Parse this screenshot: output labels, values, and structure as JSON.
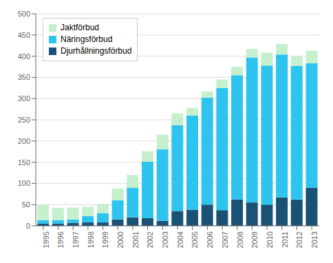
{
  "chart_data": {
    "type": "bar",
    "stacked": true,
    "categories": [
      "1995",
      "1996",
      "1997",
      "1998",
      "1999",
      "2000",
      "2001",
      "2002",
      "2003",
      "2004",
      "2005",
      "2006",
      "2007",
      "2008",
      "2009",
      "2010",
      "2011",
      "2012",
      "2013"
    ],
    "series": [
      {
        "name": "Djurhållningsförbud",
        "color": "#1A5276",
        "values": [
          5,
          5,
          7,
          8,
          8,
          15,
          20,
          18,
          12,
          35,
          38,
          50,
          37,
          62,
          55,
          50,
          67,
          62,
          90
        ]
      },
      {
        "name": "Näringsförbud",
        "color": "#2EC4F0",
        "values": [
          8,
          8,
          8,
          15,
          22,
          45,
          70,
          133,
          168,
          202,
          222,
          252,
          288,
          293,
          342,
          328,
          337,
          315,
          293
        ]
      },
      {
        "name": "Jaktförbud",
        "color": "#C6EFCE",
        "values": [
          37,
          29,
          28,
          22,
          22,
          28,
          30,
          25,
          35,
          28,
          18,
          15,
          20,
          20,
          20,
          30,
          25,
          22,
          30
        ]
      }
    ],
    "ylim": [
      0,
      500
    ],
    "yticks": [
      0,
      50,
      100,
      150,
      200,
      250,
      300,
      350,
      400,
      450,
      500
    ],
    "grid": true,
    "legend": "upper left"
  }
}
